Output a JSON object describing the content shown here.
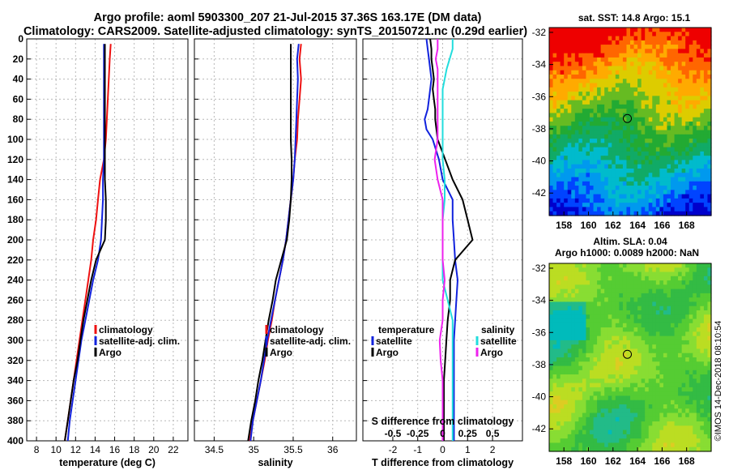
{
  "titles": {
    "line1": "Argo profile: aoml 5903300_207 21-Jul-2015 37.36S 163.17E (DM data)",
    "line2": "Climatology: CARS2009. Satellite-adjusted climatology: synTS_20150721.nc (0.29d earlier)"
  },
  "colors": {
    "climatology": "#ee1111",
    "satellite": "#1122dd",
    "argo": "#000000",
    "s_satellite": "#22dddd",
    "s_climatology": "#ee22ee"
  },
  "depth_ticks": [
    "0",
    "20",
    "40",
    "60",
    "80",
    "100",
    "120",
    "140",
    "160",
    "180",
    "200",
    "220",
    "240",
    "260",
    "280",
    "300",
    "320",
    "340",
    "360",
    "380",
    "400"
  ],
  "chart_data": [
    {
      "type": "line",
      "name": "temperature",
      "xlabel": "temperature (deg C)",
      "xlim": [
        7,
        23.5
      ],
      "ylim": [
        0,
        400
      ],
      "xticks": [
        "8",
        "10",
        "12",
        "14",
        "16",
        "18",
        "20",
        "22"
      ],
      "depth": [
        5,
        20,
        40,
        60,
        80,
        100,
        120,
        140,
        160,
        180,
        200,
        220,
        240,
        260,
        280,
        300,
        320,
        340,
        360,
        380,
        400
      ],
      "series": [
        {
          "name": "climatology",
          "values": [
            15.6,
            15.5,
            15.4,
            15.3,
            15.2,
            15.1,
            14.9,
            14.5,
            14.3,
            14.1,
            13.8,
            13.6,
            13.3,
            13.0,
            12.7,
            12.4,
            12.1,
            11.8,
            11.5,
            11.2,
            10.9
          ]
        },
        {
          "name": "satellite-adj. clim.",
          "values": [
            14.9,
            14.9,
            14.9,
            14.9,
            14.9,
            14.9,
            14.9,
            14.8,
            14.8,
            14.7,
            14.6,
            14.3,
            13.8,
            13.4,
            13.0,
            12.6,
            12.3,
            12.0,
            11.7,
            11.4,
            11.2
          ]
        },
        {
          "name": "Argo",
          "values": [
            15.0,
            15.0,
            15.0,
            15.0,
            15.0,
            15.0,
            15.0,
            15.0,
            15.1,
            15.1,
            15.0,
            14.1,
            13.6,
            13.2,
            12.8,
            12.5,
            12.2,
            11.8,
            11.5,
            11.2,
            10.9
          ]
        }
      ],
      "legend": [
        "climatology",
        "satellite-adj. clim.",
        "Argo"
      ]
    },
    {
      "type": "line",
      "name": "salinity",
      "xlabel": "salinity",
      "xlim": [
        34.25,
        36.3
      ],
      "ylim": [
        0,
        400
      ],
      "xticks": [
        "34.5",
        "35",
        "35.5",
        "36"
      ],
      "depth": [
        5,
        20,
        40,
        60,
        80,
        100,
        120,
        140,
        160,
        180,
        200,
        220,
        240,
        260,
        280,
        300,
        320,
        340,
        360,
        380,
        400
      ],
      "series": [
        {
          "name": "climatology",
          "values": [
            35.6,
            35.58,
            35.6,
            35.58,
            35.56,
            35.55,
            35.52,
            35.5,
            35.47,
            35.44,
            35.41,
            35.37,
            35.32,
            35.27,
            35.23,
            35.18,
            35.14,
            35.09,
            35.04,
            34.99,
            34.95
          ]
        },
        {
          "name": "satellite-adj. clim.",
          "values": [
            35.57,
            35.55,
            35.56,
            35.55,
            35.54,
            35.53,
            35.52,
            35.5,
            35.47,
            35.44,
            35.41,
            35.37,
            35.32,
            35.27,
            35.22,
            35.17,
            35.13,
            35.09,
            35.04,
            34.99,
            34.96
          ]
        },
        {
          "name": "Argo",
          "values": [
            35.47,
            35.47,
            35.47,
            35.47,
            35.47,
            35.47,
            35.48,
            35.48,
            35.47,
            35.45,
            35.42,
            35.35,
            35.28,
            35.24,
            35.19,
            35.15,
            35.11,
            35.06,
            35.02,
            34.97,
            34.93
          ]
        }
      ],
      "legend": [
        "climatology",
        "satellite-adj. clim.",
        "Argo"
      ]
    },
    {
      "type": "line",
      "name": "difference from climatology",
      "xlabel": "T difference from climatology",
      "xlabel_top": "S difference from climatology",
      "xlim_T": [
        -3.2,
        3.2
      ],
      "xlim_S": [
        -0.8,
        0.8
      ],
      "ylim": [
        0,
        400
      ],
      "xticks": [
        "-2",
        "-1",
        "0",
        "1",
        "2"
      ],
      "xticks_top": [
        "-0.5",
        "-0.25",
        "0",
        "0.25",
        "0.5"
      ],
      "depth": [
        0,
        10,
        20,
        30,
        40,
        50,
        60,
        70,
        80,
        90,
        100,
        120,
        140,
        160,
        180,
        200,
        220,
        240,
        260,
        280,
        300,
        320,
        340,
        360,
        380,
        400
      ],
      "series": [
        {
          "name": "T satellite",
          "values": [
            -0.65,
            -0.6,
            -0.55,
            -0.5,
            -0.45,
            -0.5,
            -0.55,
            -0.6,
            -0.72,
            -0.65,
            -0.4,
            -0.15,
            0,
            0.4,
            0.4,
            0.45,
            0.5,
            0.6,
            0.55,
            0.5,
            0.45,
            0.45,
            0.45,
            0.45,
            0.45,
            0.45
          ]
        },
        {
          "name": "T Argo",
          "values": [
            -0.5,
            -0.45,
            -0.45,
            -0.4,
            -0.35,
            -0.4,
            -0.35,
            -0.3,
            -0.3,
            -0.25,
            -0.2,
            0.1,
            0.4,
            0.8,
            1.0,
            1.2,
            0.5,
            0.3,
            0.3,
            0.2,
            0.15,
            0.1,
            0.05,
            0.05,
            0.05,
            0.05
          ]
        },
        {
          "name": "S satellite",
          "values": [
            0.1,
            0.1,
            0.07,
            0.04,
            0.02,
            0.0,
            0.0,
            0.0,
            0.0,
            0.0,
            0.0,
            0.0,
            0.02,
            0.02,
            0.0,
            0.0,
            0.0,
            0.0,
            0.05,
            0.1,
            0.1,
            0.1,
            0.1,
            0.1,
            0.1,
            0.1
          ]
        },
        {
          "name": "S climatology",
          "values": [
            -0.05,
            -0.05,
            -0.07,
            -0.05,
            -0.05,
            -0.05,
            -0.05,
            -0.05,
            -0.05,
            -0.05,
            -0.05,
            -0.08,
            -0.05,
            0.0,
            0.0,
            0.0,
            0.0,
            0.02,
            0.0,
            0.0,
            -0.03,
            -0.02,
            0.0,
            0.0,
            0.0,
            0.0
          ]
        }
      ],
      "legend_left": {
        "title": "temperature",
        "items": [
          "satellite",
          "Argo"
        ]
      },
      "legend_right": {
        "title": "salinity",
        "items": [
          "satellite",
          "Argo"
        ]
      }
    },
    {
      "type": "heatmap",
      "name": "SST map",
      "title": "sat. SST: 14.8 Argo: 15.1",
      "xticks": [
        "158",
        "160",
        "162",
        "164",
        "166",
        "168"
      ],
      "yticks": [
        "-32",
        "-34",
        "-36",
        "-38",
        "-40",
        "-42"
      ],
      "xlim": [
        156.8,
        170
      ],
      "ylim": [
        -43.4,
        -31.7
      ],
      "marker": {
        "lon": 163.17,
        "lat": -37.36
      }
    },
    {
      "type": "heatmap",
      "name": "SLA map",
      "title1": "Altim. SLA: 0.04",
      "title2": "Argo h1000: 0.0089 h2000: NaN",
      "xticks": [
        "158",
        "160",
        "162",
        "164",
        "166",
        "168"
      ],
      "yticks": [
        "-32",
        "-34",
        "-36",
        "-38",
        "-40",
        "-42"
      ],
      "xlim": [
        156.8,
        170
      ],
      "ylim": [
        -43.4,
        -31.7
      ],
      "marker": {
        "lon": 163.17,
        "lat": -37.36
      }
    }
  ],
  "credit": "©IMOS 14-Dec-2018 08:10:54"
}
